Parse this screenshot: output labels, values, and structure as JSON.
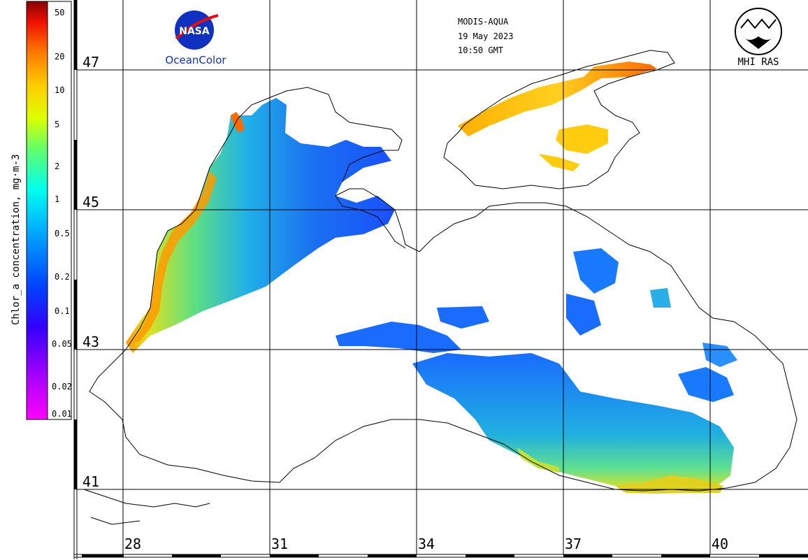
{
  "header": {
    "sensor": "MODIS-AQUA",
    "date": "19 May 2023",
    "time": "10:50 GMT"
  },
  "logos": {
    "nasa_text": "NASA",
    "oceancolor_text": "OceanColor",
    "mhi_text": "MHI RAS"
  },
  "colorbar": {
    "title": "Chlor_a concentration, mg·m-3",
    "ticks": [
      "50",
      "20",
      "10",
      "5",
      "2",
      "1",
      "0.5",
      "0.2",
      "0.1",
      "0.05",
      "0.02",
      "0.01"
    ],
    "colors": [
      "#ff00ff",
      "#8800ff",
      "#0000ff",
      "#0088ff",
      "#00ffff",
      "#88ff00",
      "#ffff00",
      "#ffaa00",
      "#ff4400",
      "#dd0000",
      "#880000"
    ]
  },
  "axes": {
    "latitudes": [
      "47",
      "45",
      "43",
      "41"
    ],
    "longitudes": [
      "28",
      "31",
      "34",
      "37",
      "40"
    ]
  },
  "colors": {
    "coast": "#000000",
    "grid": "#000000",
    "low": "#1a5cff",
    "mid": "#20c0d0",
    "high": "#d0e020",
    "veryhigh": "#ff8800"
  }
}
